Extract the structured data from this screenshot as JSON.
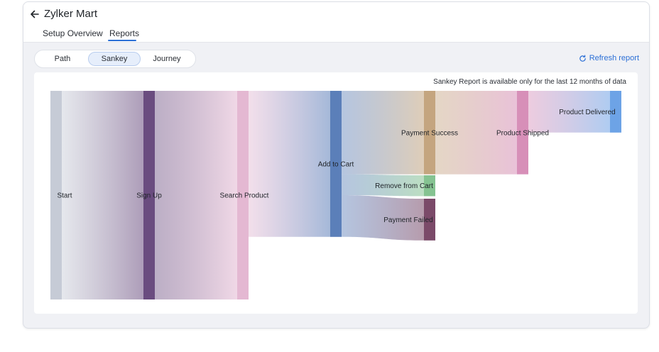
{
  "header": {
    "title": "Zylker Mart",
    "tabs": [
      {
        "label": "Setup Overview",
        "active": false
      },
      {
        "label": "Reports",
        "active": true
      }
    ]
  },
  "view_toggle": {
    "options": [
      "Path",
      "Sankey",
      "Journey"
    ],
    "selected": "Sankey"
  },
  "refresh": {
    "label": "Refresh report",
    "icon": "refresh-icon"
  },
  "note": "Sankey Report is available only for the last 12 months of data",
  "colors": {
    "accent": "#2b6fd6",
    "nodes": {
      "Start": "#c6cbd6",
      "Sign Up": "#6a4c7f",
      "Search Product": "#e4b8d2",
      "Add to Cart": "#5b7fb9",
      "Remove from Cart": "#85c391",
      "Payment Success": "#c4a57f",
      "Payment Failed": "#7b4a69",
      "Product Shipped": "#d78fb8",
      "Product Delivered": "#6da3e6"
    }
  },
  "chart_data": {
    "type": "sankey",
    "nodes": [
      "Start",
      "Sign Up",
      "Search Product",
      "Add to Cart",
      "Remove from Cart",
      "Payment Success",
      "Payment Failed",
      "Product Shipped",
      "Product Delivered"
    ],
    "links": [
      {
        "source": "Start",
        "target": "Sign Up",
        "value": 100
      },
      {
        "source": "Sign Up",
        "target": "Search Product",
        "value": 100
      },
      {
        "source": "Search Product",
        "target": "Add to Cart",
        "value": 70
      },
      {
        "source": "Add to Cart",
        "target": "Payment Success",
        "value": 40
      },
      {
        "source": "Add to Cart",
        "target": "Remove from Cart",
        "value": 10
      },
      {
        "source": "Add to Cart",
        "target": "Payment Failed",
        "value": 20
      },
      {
        "source": "Payment Success",
        "target": "Product Shipped",
        "value": 40
      },
      {
        "source": "Product Shipped",
        "target": "Product Delivered",
        "value": 20
      }
    ]
  }
}
